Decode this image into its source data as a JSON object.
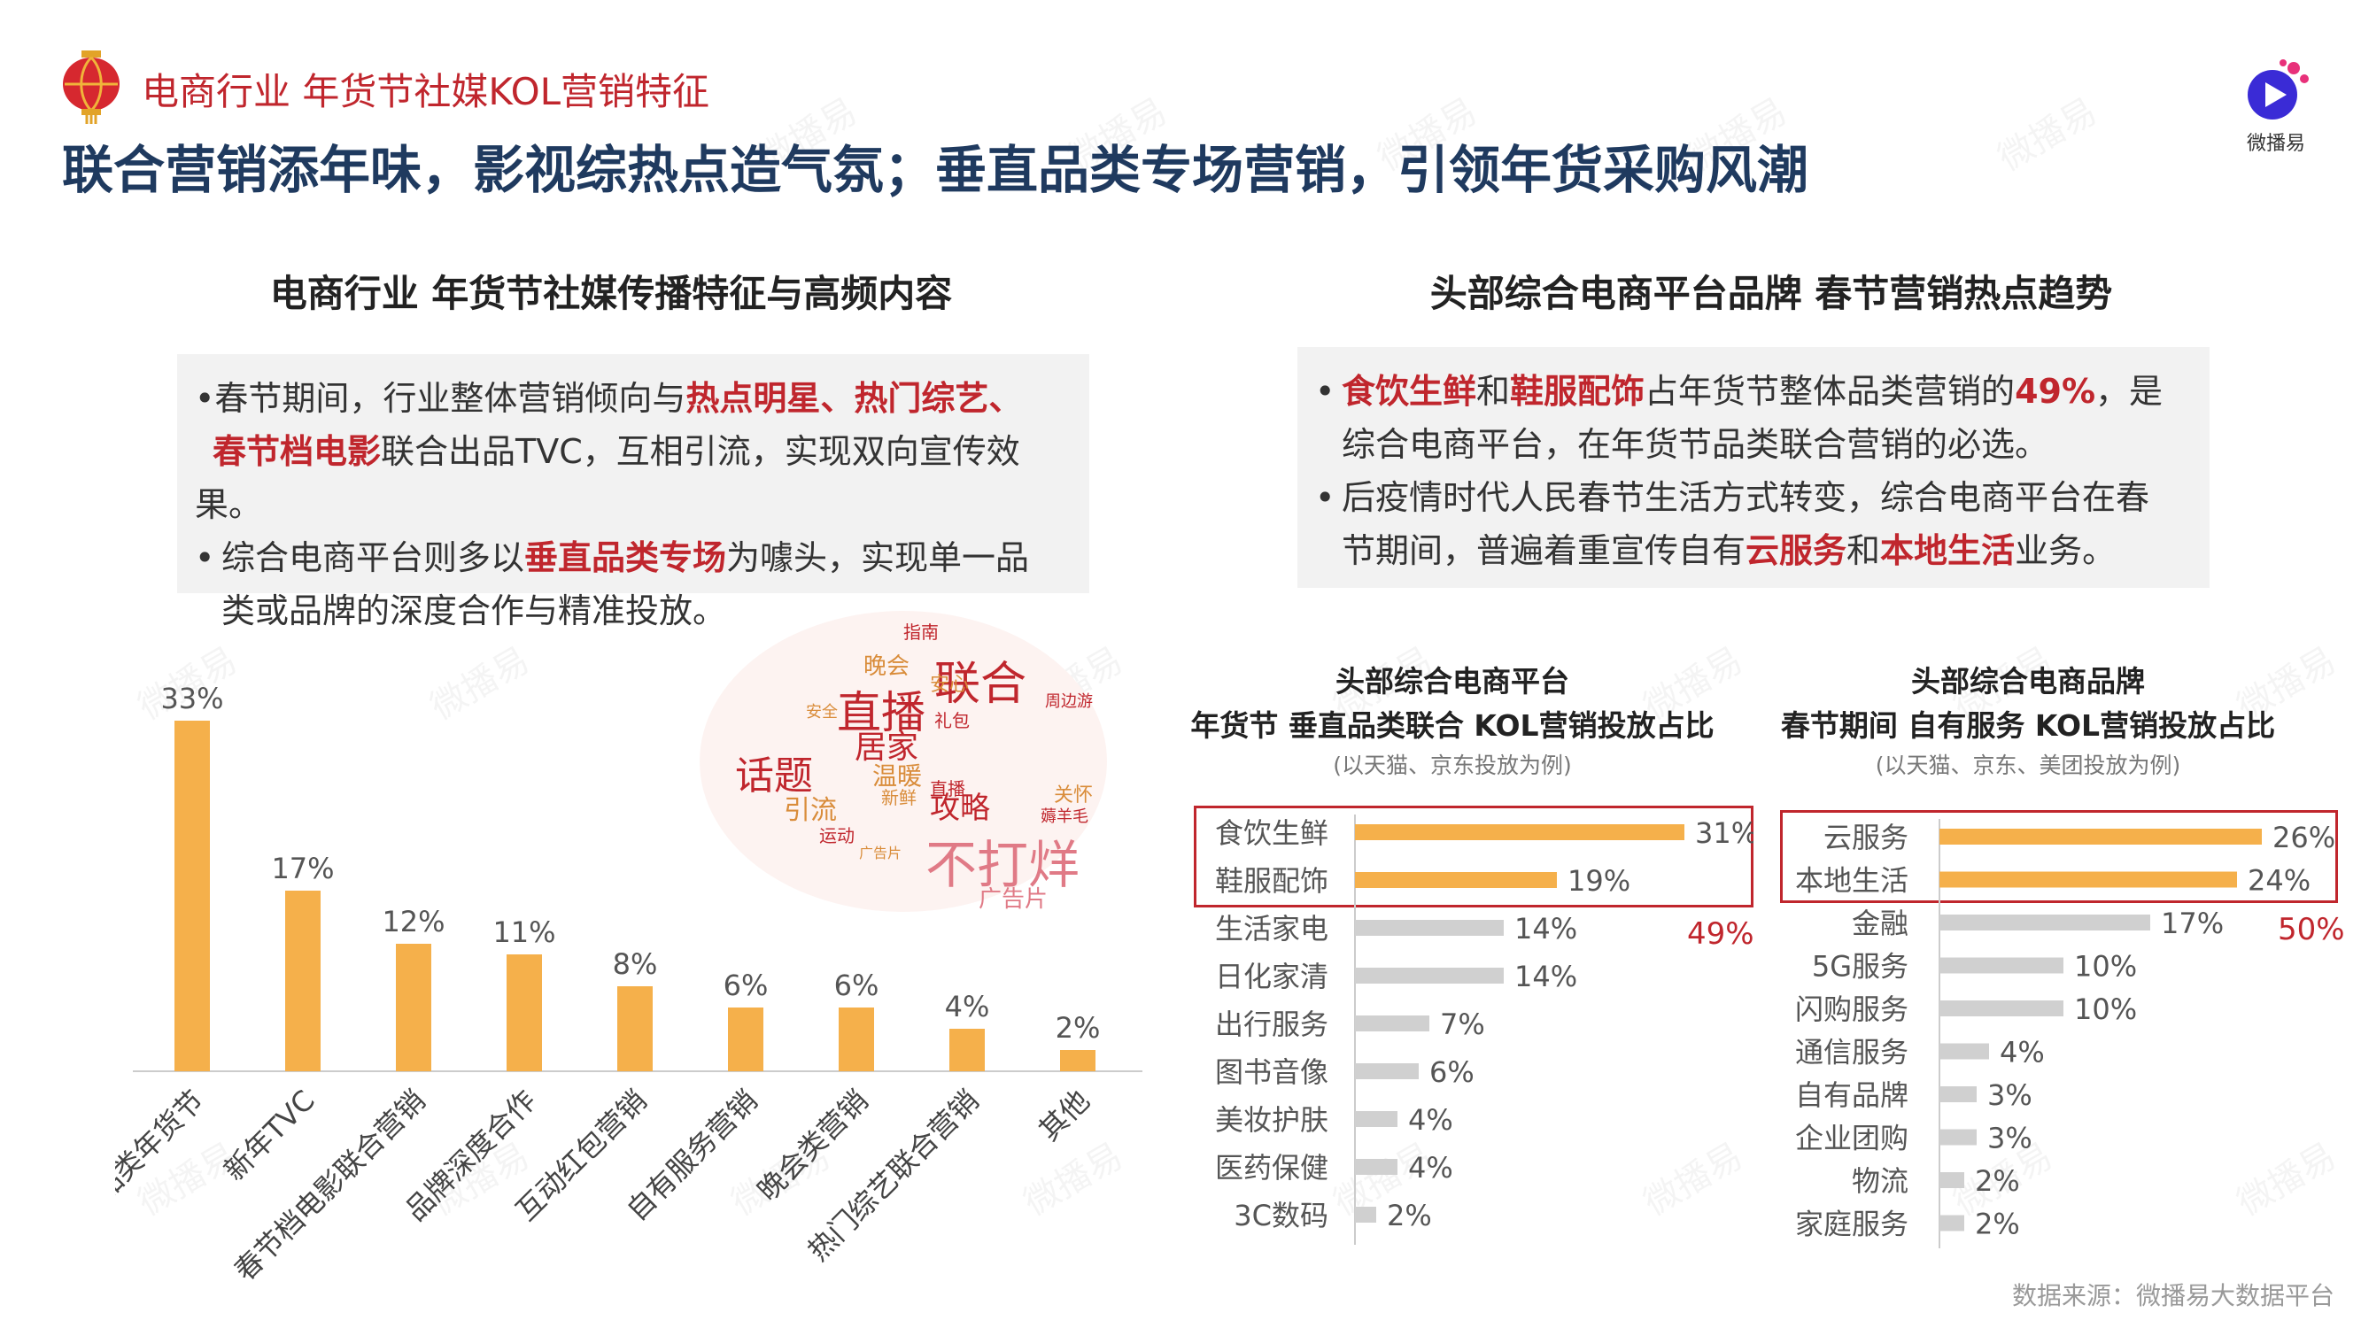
{
  "header": {
    "crumb": "电商行业 年货节社媒KOL营销特征",
    "headline": "联合营销添年味，影视综热点造气氛；垂直品类专场营销，引领年货采购风潮",
    "logo_text": "微播易"
  },
  "left": {
    "title": "电商行业 年货节社媒传播特征与高频内容",
    "p1": [
      "•春节期间，行业整体营销倾向与",
      "热点明星、热门综艺、",
      "春节档电影",
      "联合出品TVC，互相引流，实现双向宣传效果。"
    ],
    "p2": [
      "综合电商平台则多以",
      "垂直品类专场",
      "为噱头，实现单一品",
      "类或品牌的深度合作与精准投放。"
    ]
  },
  "right": {
    "title": "头部综合电商平台品牌 春节营销热点趋势",
    "p1": [
      "食饮生鲜",
      "和",
      "鞋服配饰",
      "占年货节整体品类营销的",
      "49%",
      "，是",
      "综合电商平台，在年货节品类联合营销的必选。"
    ],
    "p2": [
      "后疫情时代人民春节生活方式转变，综合电商平台在春",
      "节期间，普遍着重宣传自有",
      "云服务",
      "和",
      "本地生活",
      "业务。"
    ]
  },
  "wordcloud": [
    "联合",
    "直播",
    "居家",
    "话题",
    "不打烊",
    "攻略",
    "引流",
    "温暖",
    "晚会",
    "指南",
    "安心",
    "周边游",
    "礼包",
    "新鲜",
    "运动",
    "关怀",
    "薅羊毛",
    "广告片",
    "直播",
    "安全",
    "广告片"
  ],
  "chart_data": [
    {
      "type": "bar",
      "categories": [
        "品类年货节",
        "新年TVC",
        "春节档电影联合营销",
        "品牌深度合作",
        "互动红包营销",
        "自有服务营销",
        "晚会类营销",
        "热门综艺联合营销",
        "其他"
      ],
      "values": [
        33,
        17,
        12,
        11,
        8,
        6,
        6,
        4,
        2
      ],
      "value_labels": [
        "33%",
        "17%",
        "12%",
        "11%",
        "8%",
        "6%",
        "6%",
        "4%",
        "2%"
      ],
      "ylim": [
        0,
        35
      ],
      "color": "#f5b04b"
    },
    {
      "type": "bar",
      "orientation": "horizontal",
      "title": "头部综合电商平台",
      "subtitle": "年货节 垂直品类联合 KOL营销投放占比",
      "note": "(以天猫、京东投放为例)",
      "categories": [
        "食饮生鲜",
        "鞋服配饰",
        "生活家电",
        "日化家清",
        "出行服务",
        "图书音像",
        "美妆护肤",
        "医药保健",
        "3C数码"
      ],
      "values": [
        31,
        19,
        14,
        14,
        7,
        6,
        4,
        4,
        2
      ],
      "value_labels": [
        "31%",
        "19%",
        "14%",
        "14%",
        "7%",
        "6%",
        "4%",
        "4%",
        "2%"
      ],
      "highlighted": 2,
      "highlight_total": "49%",
      "xlim": [
        0,
        35
      ],
      "highlight_color": "#f5b04b",
      "other_color": "#d0d0d0"
    },
    {
      "type": "bar",
      "orientation": "horizontal",
      "title": "头部综合电商品牌",
      "subtitle": "春节期间 自有服务 KOL营销投放占比",
      "note": "(以天猫、京东、美团投放为例)",
      "categories": [
        "云服务",
        "本地生活",
        "金融",
        "5G服务",
        "闪购服务",
        "通信服务",
        "自有品牌",
        "企业团购",
        "物流",
        "家庭服务"
      ],
      "values": [
        26,
        24,
        17,
        10,
        10,
        4,
        3,
        3,
        2,
        2
      ],
      "value_labels": [
        "26%",
        "24%",
        "17%",
        "10%",
        "10%",
        "4%",
        "3%",
        "3%",
        "2%",
        "2%"
      ],
      "highlighted": 2,
      "highlight_total": "50%",
      "xlim": [
        0,
        28
      ],
      "highlight_color": "#f5b04b",
      "other_color": "#d0d0d0"
    }
  ],
  "source": "数据来源：微播易大数据平台"
}
